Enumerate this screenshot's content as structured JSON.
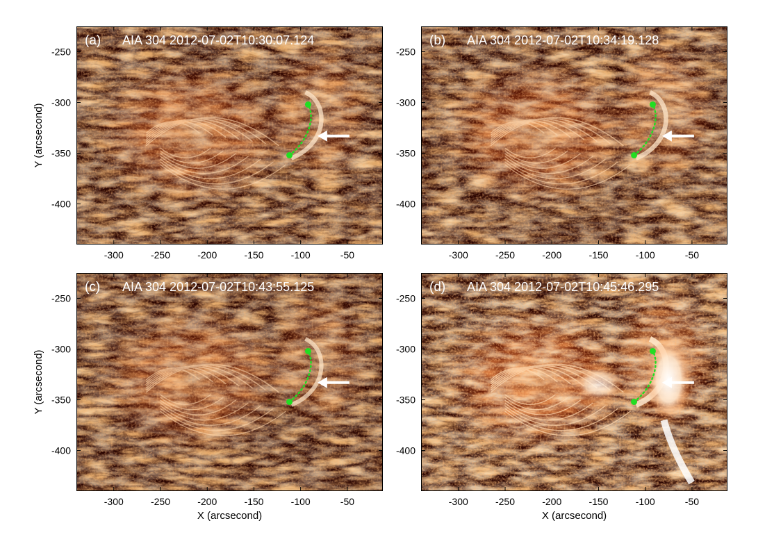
{
  "figure": {
    "x_axis_label": "X (arcsecond)",
    "y_axis_label": "Y (arcsecond)",
    "x_ticks": [
      "-300",
      "-250",
      "-200",
      "-150",
      "-100",
      "-50"
    ],
    "y_ticks": [
      "-250",
      "-300",
      "-350",
      "-400"
    ],
    "colors": {
      "background": "#2a0400",
      "loop_marker": "#22dd22",
      "arrow": "#ffffff",
      "label_text": "#ffffff"
    },
    "panels": [
      {
        "letter": "(a)",
        "instrument": "AIA 304",
        "timestamp": "2012-07-02T10:30:07.124",
        "brightness": 0.55
      },
      {
        "letter": "(b)",
        "instrument": "AIA 304",
        "timestamp": "2012-07-02T10:34:19.128",
        "brightness": 0.6
      },
      {
        "letter": "(c)",
        "instrument": "AIA 304",
        "timestamp": "2012-07-02T10:43:55.125",
        "brightness": 0.5
      },
      {
        "letter": "(d)",
        "instrument": "AIA 304",
        "timestamp": "2012-07-02T10:45:46.295",
        "brightness": 0.9
      }
    ]
  }
}
